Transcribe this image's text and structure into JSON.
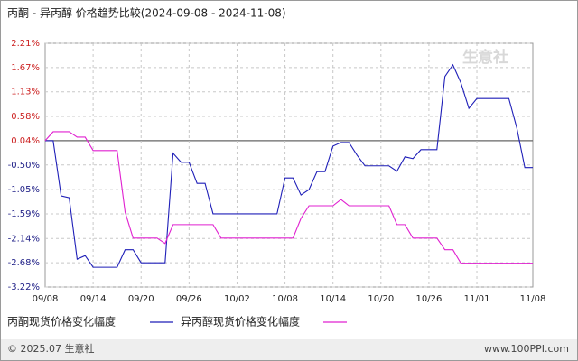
{
  "chart_data": {
    "type": "line",
    "title": "丙酮 - 异丙醇 价格趋势比较(2024-09-08 - 2024-11-08)",
    "watermark": "生意社",
    "footer_left": "© 2025.07 生意社",
    "footer_right": "www.100PPI.com",
    "categories": [
      "09/08",
      null,
      null,
      null,
      null,
      null,
      "09/14",
      null,
      null,
      null,
      null,
      null,
      "09/20",
      null,
      null,
      null,
      null,
      null,
      "09/26",
      null,
      null,
      null,
      null,
      null,
      "10/02",
      null,
      null,
      null,
      null,
      null,
      "10/08",
      null,
      null,
      null,
      null,
      null,
      "10/14",
      null,
      null,
      null,
      null,
      null,
      "10/20",
      null,
      null,
      null,
      null,
      null,
      "10/26",
      null,
      null,
      null,
      null,
      null,
      "11/01",
      null,
      null,
      null,
      null,
      null,
      null,
      "11/08"
    ],
    "series": [
      {
        "name": "丙酮现货价格变化幅度",
        "color": "#1f1fb8",
        "values": [
          0.04,
          0.04,
          -1.19,
          -1.23,
          -2.6,
          -2.52,
          -2.78,
          -2.78,
          -2.78,
          -2.78,
          -2.39,
          -2.39,
          -2.68,
          -2.68,
          -2.68,
          -2.68,
          -0.24,
          -0.44,
          -0.44,
          -0.91,
          -0.91,
          -1.59,
          -1.59,
          -1.59,
          -1.59,
          -1.59,
          -1.59,
          -1.59,
          -1.59,
          -1.59,
          -0.79,
          -0.79,
          -1.17,
          -1.05,
          -0.65,
          -0.65,
          -0.08,
          0.0,
          0.0,
          -0.28,
          -0.52,
          -0.52,
          -0.52,
          -0.52,
          -0.64,
          -0.32,
          -0.36,
          -0.16,
          -0.16,
          -0.16,
          1.47,
          1.73,
          1.33,
          0.76,
          0.98,
          0.98,
          0.98,
          0.98,
          0.98,
          0.32,
          -0.56,
          -0.56
        ]
      },
      {
        "name": "异丙醇现货价格变化幅度",
        "color": "#e020d0",
        "values": [
          0.04,
          0.24,
          0.24,
          0.24,
          0.12,
          0.12,
          -0.18,
          -0.18,
          -0.18,
          -0.18,
          -1.55,
          -2.13,
          -2.13,
          -2.13,
          -2.13,
          -2.25,
          -1.83,
          -1.83,
          -1.83,
          -1.83,
          -1.83,
          -1.83,
          -2.13,
          -2.13,
          -2.13,
          -2.13,
          -2.13,
          -2.13,
          -2.13,
          -2.13,
          -2.13,
          -2.13,
          -1.69,
          -1.41,
          -1.41,
          -1.41,
          -1.41,
          -1.27,
          -1.41,
          -1.41,
          -1.41,
          -1.41,
          -1.41,
          -1.41,
          -1.83,
          -1.83,
          -2.13,
          -2.13,
          -2.13,
          -2.13,
          -2.39,
          -2.39,
          -2.69,
          -2.69,
          -2.69,
          -2.69,
          -2.69,
          -2.69,
          -2.69,
          -2.69,
          -2.69,
          -2.69
        ]
      }
    ],
    "ylim": [
      -3.22,
      2.21
    ],
    "yticks": [
      {
        "value": 2.21,
        "label": "2.21%"
      },
      {
        "value": 1.67,
        "label": "1.67%"
      },
      {
        "value": 1.13,
        "label": "1.13%"
      },
      {
        "value": 0.58,
        "label": "0.58%"
      },
      {
        "value": 0.04,
        "label": "0.04%"
      },
      {
        "value": -0.5,
        "label": "-0.50%"
      },
      {
        "value": -1.05,
        "label": "-1.05%"
      },
      {
        "value": -1.59,
        "label": "-1.59%"
      },
      {
        "value": -2.14,
        "label": "-2.14%"
      },
      {
        "value": -2.68,
        "label": "-2.68%"
      },
      {
        "value": -3.22,
        "label": "-3.22%"
      }
    ],
    "positive_tick_color": "#cc2222",
    "negative_tick_color": "#222288",
    "grid": true
  }
}
